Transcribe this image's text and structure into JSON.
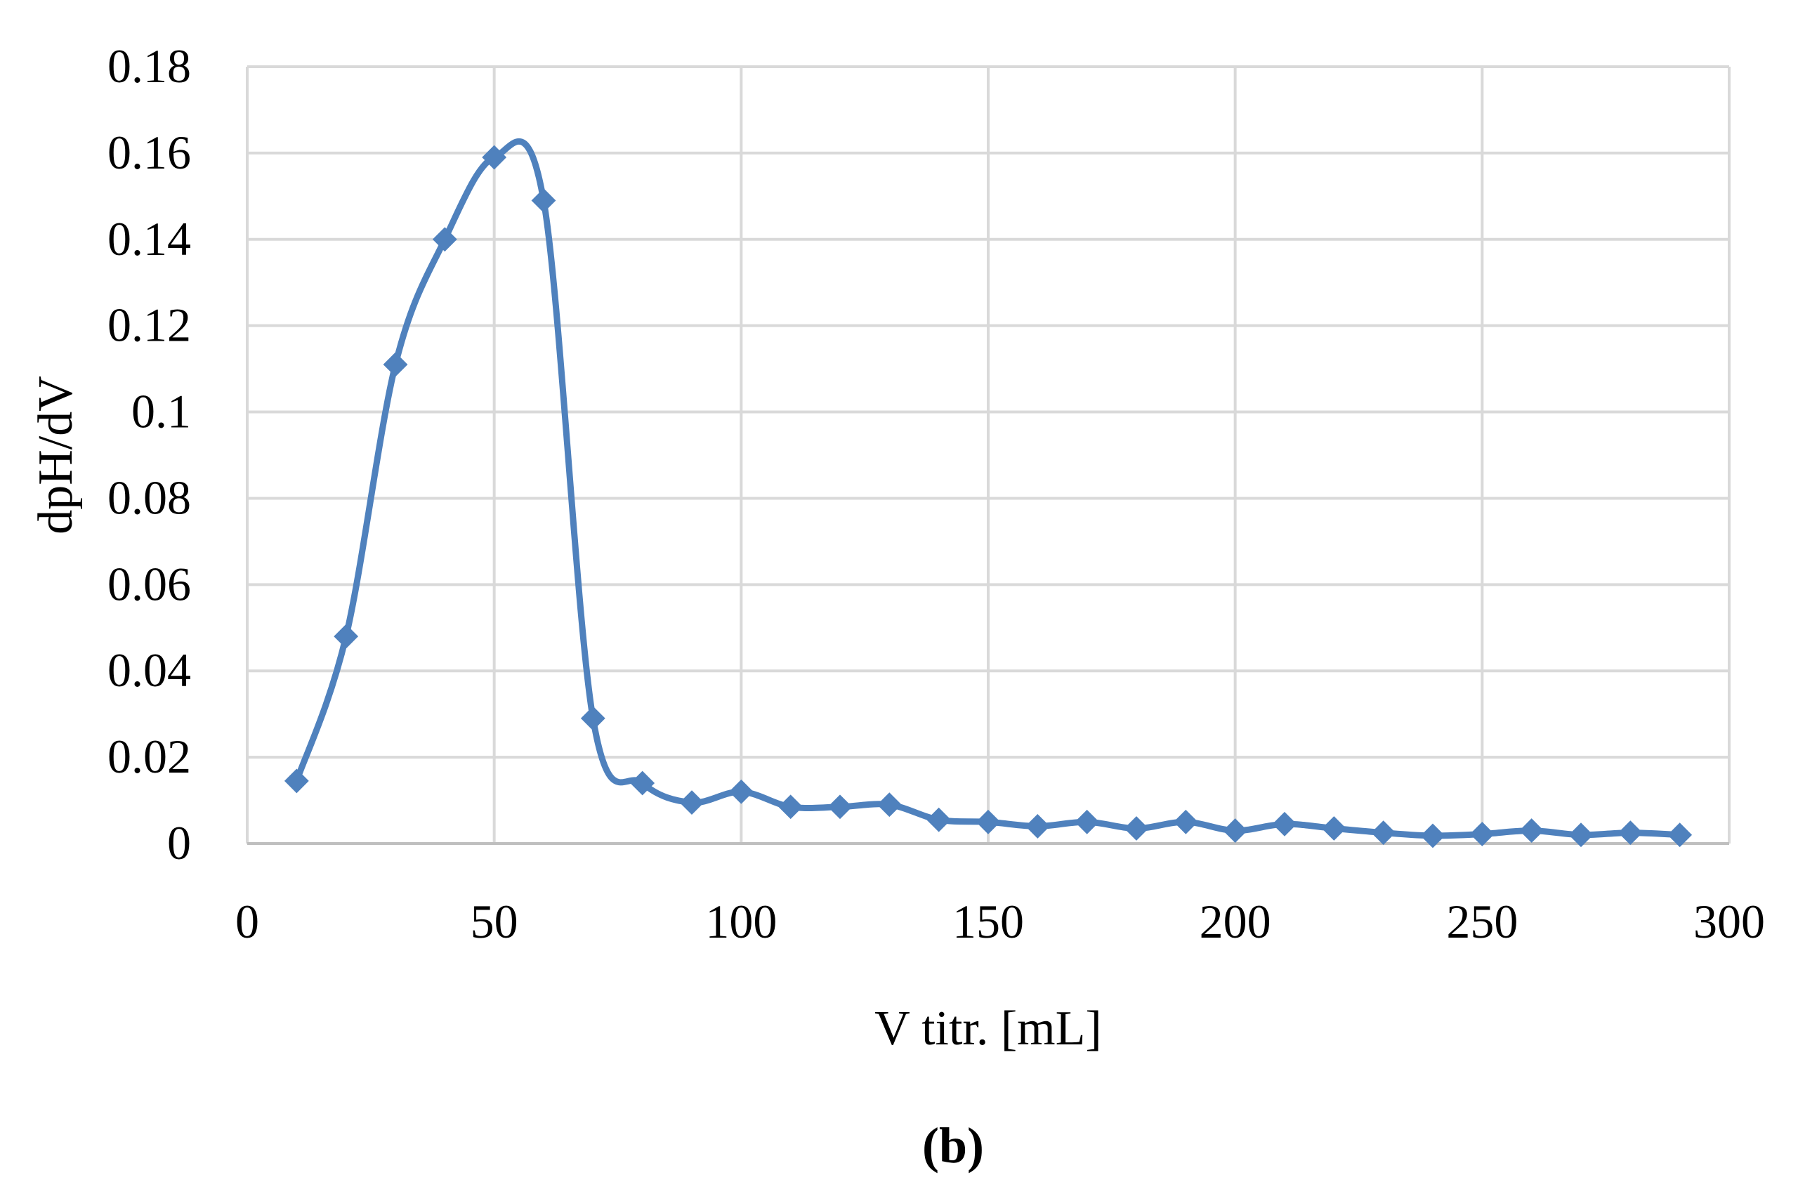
{
  "chart_data": {
    "type": "line",
    "title": "",
    "xlabel": "V titr. [mL]",
    "ylabel": "dpH/dV",
    "xlim": [
      0,
      300
    ],
    "ylim": [
      0,
      0.18
    ],
    "x_ticks": [
      "0",
      "50",
      "100",
      "150",
      "200",
      "250",
      "300"
    ],
    "y_ticks": [
      "0",
      "0.02",
      "0.04",
      "0.06",
      "0.08",
      "0.1",
      "0.12",
      "0.14",
      "0.16",
      "0.18"
    ],
    "grid": true,
    "legend": "none",
    "smooth": true,
    "marker": "diamond",
    "series": [
      {
        "color": "#4f81bd",
        "x": [
          10,
          20,
          30,
          40,
          50,
          60,
          70,
          80,
          90,
          100,
          110,
          120,
          130,
          140,
          150,
          160,
          170,
          180,
          190,
          200,
          210,
          220,
          230,
          240,
          250,
          260,
          270,
          280,
          290
        ],
        "y": [
          0.0145,
          0.048,
          0.111,
          0.14,
          0.159,
          0.149,
          0.029,
          0.014,
          0.0095,
          0.012,
          0.0085,
          0.0085,
          0.009,
          0.0055,
          0.005,
          0.004,
          0.005,
          0.0035,
          0.005,
          0.003,
          0.0045,
          0.0035,
          0.0025,
          0.0018,
          0.0022,
          0.003,
          0.002,
          0.0025,
          0.002
        ]
      }
    ]
  },
  "panel_label": "(b)",
  "colors": {
    "grid": "#d9d9d9",
    "axis": "#bfbfbf",
    "series": "#4f81bd"
  }
}
